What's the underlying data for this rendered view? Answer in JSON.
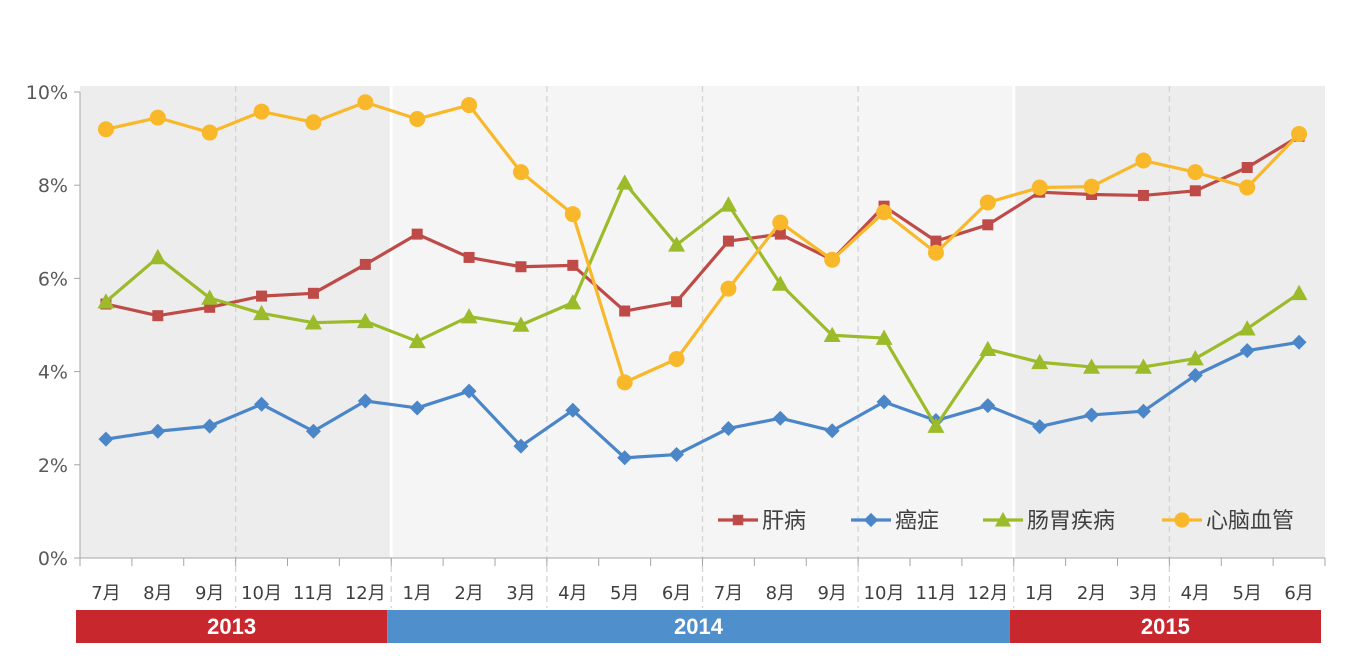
{
  "chart_data": {
    "type": "line",
    "title": "",
    "xlabel": "",
    "ylabel": "",
    "ylim": [
      0,
      10
    ],
    "y_ticks": [
      "0%",
      "2%",
      "4%",
      "6%",
      "8%",
      "10%"
    ],
    "y_unit": "%",
    "grid": false,
    "legend_position": "bottom-right",
    "categories": [
      "7月",
      "8月",
      "9月",
      "10月",
      "11月",
      "12月",
      "1月",
      "2月",
      "3月",
      "4月",
      "5月",
      "6月",
      "7月",
      "8月",
      "9月",
      "10月",
      "11月",
      "12月",
      "1月",
      "2月",
      "3月",
      "4月",
      "5月",
      "6月"
    ],
    "year_groups": [
      {
        "label": "2013",
        "start": 0,
        "end": 5,
        "color": "#C8282D",
        "band": "#EDEDED"
      },
      {
        "label": "2014",
        "start": 6,
        "end": 17,
        "color": "#4F8FCC",
        "band": "#F5F5F5"
      },
      {
        "label": "2015",
        "start": 18,
        "end": 23,
        "color": "#C8282D",
        "band": "#EDEDED"
      }
    ],
    "series": [
      {
        "name": "肝病",
        "color": "#BE4B48",
        "marker": "square",
        "values": [
          5.45,
          5.2,
          5.38,
          5.62,
          5.68,
          6.3,
          6.95,
          6.45,
          6.25,
          6.28,
          5.3,
          5.5,
          6.8,
          6.95,
          6.4,
          7.55,
          6.8,
          7.15,
          7.85,
          7.8,
          7.78,
          7.88,
          8.38,
          9.05
        ]
      },
      {
        "name": "癌症",
        "color": "#4A86C8",
        "marker": "diamond",
        "values": [
          2.55,
          2.72,
          2.83,
          3.3,
          2.72,
          3.37,
          3.22,
          3.58,
          2.4,
          3.17,
          2.15,
          2.22,
          2.78,
          3.0,
          2.73,
          3.35,
          2.95,
          3.27,
          2.82,
          3.07,
          3.15,
          3.92,
          4.45,
          4.63
        ]
      },
      {
        "name": "肠胃疾病",
        "color": "#9BBB2A",
        "marker": "triangle",
        "values": [
          5.5,
          6.45,
          5.58,
          5.25,
          5.05,
          5.08,
          4.65,
          5.18,
          5.0,
          5.48,
          8.05,
          6.72,
          7.58,
          5.88,
          4.78,
          4.72,
          2.83,
          4.48,
          4.2,
          4.1,
          4.1,
          4.28,
          4.92,
          5.68
        ]
      },
      {
        "name": "心脑血管",
        "color": "#F9B82A",
        "marker": "circle",
        "values": [
          9.2,
          9.45,
          9.13,
          9.58,
          9.35,
          9.78,
          9.42,
          9.72,
          8.28,
          7.38,
          3.77,
          4.27,
          5.78,
          7.2,
          6.4,
          7.42,
          6.55,
          7.63,
          7.95,
          7.97,
          8.53,
          8.28,
          7.95,
          9.1
        ]
      }
    ]
  }
}
